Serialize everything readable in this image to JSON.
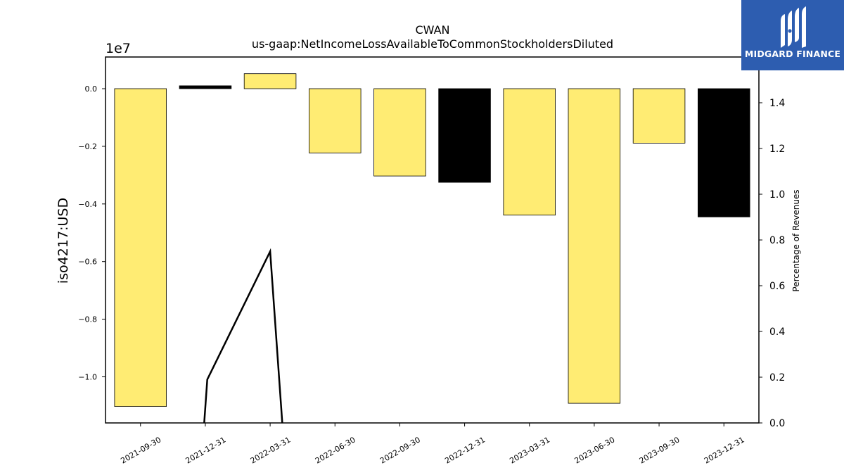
{
  "chart_data": {
    "type": "bar",
    "title": "CWAN",
    "subtitle": "us-gaap:NetIncomeLossAvailableToCommonStockholdersDiluted",
    "ylabel": "iso4217:USD",
    "y_offset_label": "1e7",
    "y2label": "Percentage of Revenues",
    "categories": [
      "2021-09-30",
      "2021-12-31",
      "2022-03-31",
      "2022-06-30",
      "2022-09-30",
      "2022-12-31",
      "2023-03-31",
      "2023-06-30",
      "2023-09-30",
      "2023-12-31"
    ],
    "values": [
      -11030000,
      100000,
      520000,
      -2230000,
      -3030000,
      -3250000,
      -4390000,
      -10920000,
      -1890000,
      -4450000
    ],
    "bar_colors": [
      "#ffec73",
      "#000000",
      "#ffec73",
      "#ffec73",
      "#ffec73",
      "#000000",
      "#ffec73",
      "#ffec73",
      "#ffec73",
      "#000000"
    ],
    "ylim": [
      -11600000,
      1100000
    ],
    "yticks": [
      0.0,
      -0.2,
      -0.4,
      -0.6,
      -0.8,
      -1.0
    ],
    "ytick_labels": [
      "0.0",
      "−0.2",
      "−0.4",
      "−0.6",
      "−0.8",
      "−1.0"
    ],
    "y2lim": [
      0,
      1.6
    ],
    "y2ticks": [
      0.0,
      0.2,
      0.4,
      0.6,
      0.8,
      1.0,
      1.2,
      1.4
    ],
    "y2tick_labels": [
      "0.0",
      "0.2",
      "0.4",
      "0.6",
      "0.8",
      "1.0",
      "1.2",
      "1.4"
    ],
    "line_series": {
      "x": [
        0.97,
        1.03,
        2.0,
        2.2
      ],
      "values": [
        -0.05,
        0.19,
        0.75,
        -0.05
      ],
      "color": "#000000"
    },
    "grid": false
  },
  "logo": {
    "text": "MIDGARD FINANCE",
    "color": "#2d5db0"
  }
}
